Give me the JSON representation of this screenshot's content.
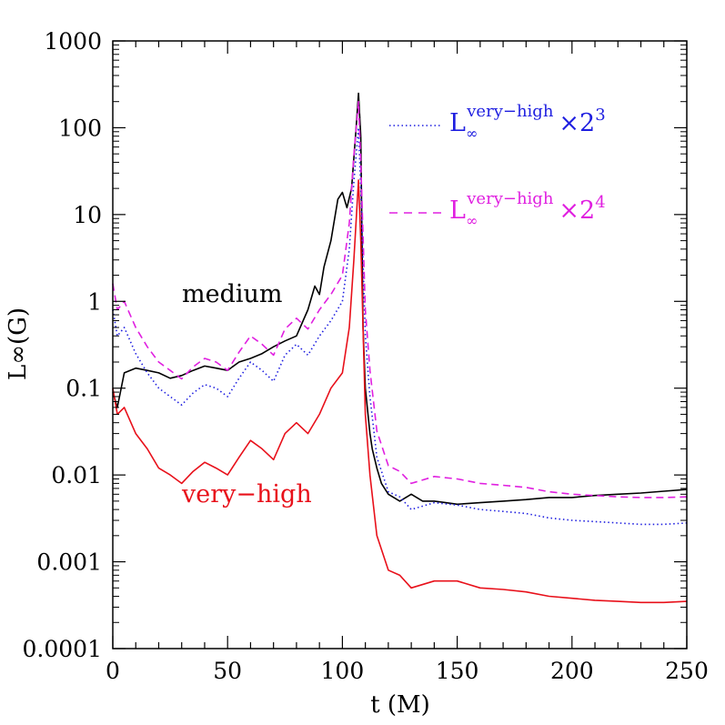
{
  "chart_data": {
    "type": "line",
    "xlabel": "t (M)",
    "ylabel": "L∞(G)",
    "xlim": [
      0,
      250
    ],
    "ylim": [
      0.0001,
      1000
    ],
    "yscale": "log",
    "x_ticks": [
      "0",
      "50",
      "100",
      "150",
      "200",
      "250"
    ],
    "y_ticks": [
      "0.0001",
      "0.001",
      "0.01",
      "0.1",
      "1",
      "10",
      "100",
      "1000"
    ],
    "grid": false,
    "annotations": [
      {
        "text": "medium",
        "color": "#000000"
      },
      {
        "text": "very−high",
        "color": "#e8101a"
      }
    ],
    "legend": [
      {
        "base": "L",
        "sub": "∞",
        "sup": "very−high",
        "factor": "×2",
        "exp": "3",
        "style": "dotted",
        "color": "#1f1fe0"
      },
      {
        "base": "L",
        "sub": "∞",
        "sup": "very−high",
        "factor": "×2",
        "exp": "4",
        "style": "dashed",
        "color": "#e020e0"
      }
    ],
    "series": [
      {
        "name": "medium",
        "color": "#000000",
        "style": "solid",
        "x": [
          0,
          2,
          5,
          10,
          15,
          20,
          25,
          30,
          35,
          40,
          45,
          50,
          55,
          60,
          65,
          70,
          75,
          80,
          85,
          88,
          90,
          92,
          95,
          98,
          100,
          102,
          104,
          106,
          107,
          108,
          109,
          110,
          112,
          113,
          115,
          117,
          120,
          125,
          130,
          135,
          140,
          145,
          150,
          160,
          170,
          180,
          190,
          200,
          210,
          220,
          230,
          240,
          250
        ],
        "y": [
          0.09,
          0.06,
          0.15,
          0.17,
          0.16,
          0.15,
          0.13,
          0.14,
          0.16,
          0.18,
          0.17,
          0.16,
          0.2,
          0.22,
          0.25,
          0.3,
          0.35,
          0.4,
          0.8,
          1.5,
          1.2,
          2.5,
          5,
          15,
          18,
          12,
          20,
          100,
          250,
          80,
          0.5,
          0.1,
          0.03,
          0.02,
          0.012,
          0.008,
          0.006,
          0.005,
          0.006,
          0.005,
          0.005,
          0.0048,
          0.0046,
          0.0048,
          0.005,
          0.0052,
          0.0055,
          0.0055,
          0.0058,
          0.006,
          0.0062,
          0.0065,
          0.0068
        ]
      },
      {
        "name": "very-high",
        "color": "#e8101a",
        "style": "solid",
        "x": [
          0,
          2,
          5,
          10,
          15,
          20,
          25,
          30,
          35,
          40,
          45,
          50,
          55,
          60,
          65,
          70,
          75,
          80,
          85,
          90,
          95,
          100,
          103,
          105,
          107,
          108,
          110,
          112,
          115,
          120,
          125,
          130,
          140,
          150,
          160,
          170,
          180,
          190,
          200,
          210,
          220,
          230,
          240,
          250
        ],
        "y": [
          0.1,
          0.05,
          0.06,
          0.03,
          0.02,
          0.012,
          0.01,
          0.008,
          0.011,
          0.014,
          0.012,
          0.01,
          0.016,
          0.025,
          0.02,
          0.015,
          0.03,
          0.04,
          0.03,
          0.05,
          0.1,
          0.15,
          0.5,
          3,
          25,
          5,
          0.05,
          0.01,
          0.002,
          0.0008,
          0.0007,
          0.0005,
          0.0006,
          0.0006,
          0.0005,
          0.00048,
          0.00045,
          0.0004,
          0.00038,
          0.00036,
          0.00035,
          0.00034,
          0.00034,
          0.00035
        ]
      },
      {
        "name": "very-high ×2^3",
        "color": "#1f1fe0",
        "style": "dotted",
        "x": [
          0,
          2,
          5,
          10,
          15,
          20,
          25,
          30,
          35,
          40,
          45,
          50,
          55,
          60,
          65,
          70,
          75,
          80,
          85,
          90,
          95,
          100,
          103,
          105,
          107,
          108,
          110,
          112,
          115,
          120,
          125,
          130,
          140,
          150,
          160,
          170,
          180,
          190,
          200,
          210,
          220,
          230,
          240,
          250
        ],
        "y": [
          0.8,
          0.4,
          0.5,
          0.25,
          0.15,
          0.1,
          0.08,
          0.064,
          0.088,
          0.11,
          0.1,
          0.08,
          0.13,
          0.2,
          0.16,
          0.12,
          0.24,
          0.32,
          0.24,
          0.4,
          0.6,
          1.0,
          4,
          24,
          100,
          20,
          0.4,
          0.08,
          0.016,
          0.0064,
          0.0056,
          0.004,
          0.0048,
          0.0045,
          0.004,
          0.0038,
          0.0036,
          0.0032,
          0.003,
          0.0029,
          0.0028,
          0.0027,
          0.0027,
          0.0028
        ]
      },
      {
        "name": "very-high ×2^4",
        "color": "#e020e0",
        "style": "dashed",
        "x": [
          0,
          2,
          5,
          10,
          15,
          20,
          25,
          30,
          35,
          40,
          45,
          50,
          55,
          60,
          65,
          70,
          75,
          80,
          85,
          90,
          95,
          100,
          103,
          105,
          107,
          108,
          110,
          112,
          115,
          120,
          125,
          130,
          140,
          150,
          160,
          170,
          180,
          190,
          200,
          210,
          220,
          230,
          240,
          250
        ],
        "y": [
          1.6,
          0.8,
          1.0,
          0.5,
          0.3,
          0.2,
          0.16,
          0.128,
          0.176,
          0.22,
          0.2,
          0.16,
          0.26,
          0.4,
          0.32,
          0.24,
          0.48,
          0.64,
          0.48,
          0.8,
          1.2,
          2.0,
          8,
          48,
          200,
          40,
          0.8,
          0.16,
          0.032,
          0.0128,
          0.011,
          0.008,
          0.0096,
          0.009,
          0.008,
          0.0076,
          0.0072,
          0.0064,
          0.006,
          0.0058,
          0.0056,
          0.0055,
          0.0055,
          0.0056
        ]
      }
    ]
  }
}
